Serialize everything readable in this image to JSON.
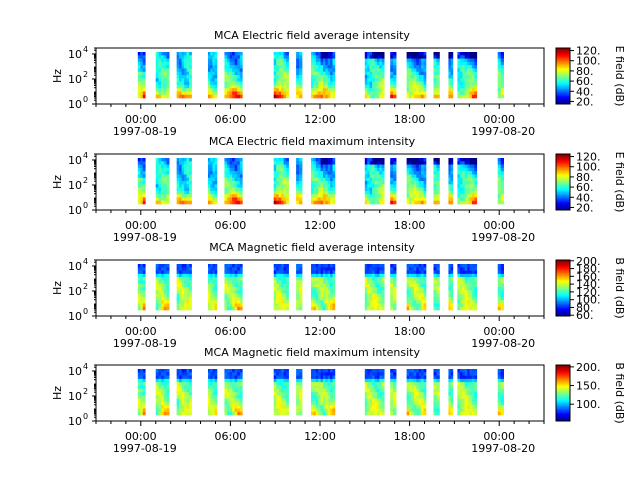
{
  "chart_data": [
    {
      "type": "heatmap",
      "title": "MCA  Electric field average intensity",
      "ylabel": "Hz",
      "yscale": "log",
      "ylim": [
        1,
        30000
      ],
      "yticks": [
        {
          "base": "10",
          "exp": "0"
        },
        {
          "base": "10",
          "exp": "2"
        },
        {
          "base": "10",
          "exp": "4"
        }
      ],
      "xlim_hours": [
        -3,
        27
      ],
      "xticks": [
        {
          "time": "00:00",
          "date": "1997-08-19"
        },
        {
          "time": "06:00",
          "date": ""
        },
        {
          "time": "12:00",
          "date": ""
        },
        {
          "time": "18:00",
          "date": ""
        },
        {
          "time": "00:00",
          "date": "1997-08-20"
        }
      ],
      "colorbar": {
        "label": "E field (dB)",
        "range": [
          15,
          125
        ],
        "ticks": [
          "20.",
          "40.",
          "60.",
          "80.",
          "100.",
          "120."
        ],
        "colormap": "jet"
      },
      "pattern": "electric",
      "data_segments_hours": [
        [
          -0.2,
          0.3
        ],
        [
          1.0,
          1.9
        ],
        [
          2.4,
          3.4
        ],
        [
          4.5,
          5.1
        ],
        [
          5.6,
          6.8
        ],
        [
          8.9,
          9.9
        ],
        [
          10.4,
          10.8
        ],
        [
          11.4,
          13.0
        ],
        [
          15.0,
          16.3
        ],
        [
          16.7,
          17.1
        ],
        [
          17.8,
          19.1
        ],
        [
          19.6,
          20.0
        ],
        [
          20.6,
          20.9
        ],
        [
          21.2,
          22.5
        ],
        [
          23.9,
          24.3
        ]
      ]
    },
    {
      "type": "heatmap",
      "title": "MCA  Electric field maximum intensity",
      "ylabel": "Hz",
      "yscale": "log",
      "ylim": [
        1,
        30000
      ],
      "yticks": [
        {
          "base": "10",
          "exp": "0"
        },
        {
          "base": "10",
          "exp": "2"
        },
        {
          "base": "10",
          "exp": "4"
        }
      ],
      "xlim_hours": [
        -3,
        27
      ],
      "xticks": [
        {
          "time": "00:00",
          "date": "1997-08-19"
        },
        {
          "time": "06:00",
          "date": ""
        },
        {
          "time": "12:00",
          "date": ""
        },
        {
          "time": "18:00",
          "date": ""
        },
        {
          "time": "00:00",
          "date": "1997-08-20"
        }
      ],
      "colorbar": {
        "label": "E field (dB)",
        "range": [
          15,
          125
        ],
        "ticks": [
          "20.",
          "40.",
          "60.",
          "80.",
          "100.",
          "120."
        ],
        "colormap": "jet"
      },
      "pattern": "electric",
      "data_segments_hours": [
        [
          -0.2,
          0.3
        ],
        [
          1.0,
          1.9
        ],
        [
          2.4,
          3.4
        ],
        [
          4.5,
          5.1
        ],
        [
          5.6,
          6.8
        ],
        [
          8.9,
          9.9
        ],
        [
          10.4,
          10.8
        ],
        [
          11.4,
          13.0
        ],
        [
          15.0,
          16.3
        ],
        [
          16.7,
          17.1
        ],
        [
          17.8,
          19.1
        ],
        [
          19.6,
          20.0
        ],
        [
          20.6,
          20.9
        ],
        [
          21.2,
          22.5
        ],
        [
          23.9,
          24.3
        ]
      ]
    },
    {
      "type": "heatmap",
      "title": "MCA  Magnetic field average intensity",
      "ylabel": "Hz",
      "yscale": "log",
      "ylim": [
        1,
        30000
      ],
      "yticks": [
        {
          "base": "10",
          "exp": "0"
        },
        {
          "base": "10",
          "exp": "2"
        },
        {
          "base": "10",
          "exp": "4"
        }
      ],
      "xlim_hours": [
        -3,
        27
      ],
      "xticks": [
        {
          "time": "00:00",
          "date": "1997-08-19"
        },
        {
          "time": "06:00",
          "date": ""
        },
        {
          "time": "12:00",
          "date": ""
        },
        {
          "time": "18:00",
          "date": ""
        },
        {
          "time": "00:00",
          "date": "1997-08-20"
        }
      ],
      "colorbar": {
        "label": "B field (dB)",
        "range": [
          58,
          202
        ],
        "ticks": [
          "60.",
          "80.",
          "100.",
          "120.",
          "140.",
          "160.",
          "180.",
          "200."
        ],
        "colormap": "jet"
      },
      "pattern": "magnetic",
      "data_segments_hours": [
        [
          -0.2,
          0.3
        ],
        [
          1.0,
          1.9
        ],
        [
          2.4,
          3.4
        ],
        [
          4.5,
          5.1
        ],
        [
          5.6,
          6.8
        ],
        [
          8.9,
          9.9
        ],
        [
          10.4,
          10.8
        ],
        [
          11.4,
          13.0
        ],
        [
          15.0,
          16.3
        ],
        [
          16.7,
          17.1
        ],
        [
          17.8,
          19.1
        ],
        [
          19.6,
          20.0
        ],
        [
          20.6,
          20.9
        ],
        [
          21.2,
          22.5
        ],
        [
          23.9,
          24.3
        ]
      ]
    },
    {
      "type": "heatmap",
      "title": "MCA  Magnetic field maximum intensity",
      "ylabel": "Hz",
      "yscale": "log",
      "ylim": [
        1,
        30000
      ],
      "yticks": [
        {
          "base": "10",
          "exp": "0"
        },
        {
          "base": "10",
          "exp": "2"
        },
        {
          "base": "10",
          "exp": "4"
        }
      ],
      "xlim_hours": [
        -3,
        27
      ],
      "xticks": [
        {
          "time": "00:00",
          "date": "1997-08-19"
        },
        {
          "time": "06:00",
          "date": ""
        },
        {
          "time": "12:00",
          "date": ""
        },
        {
          "time": "18:00",
          "date": ""
        },
        {
          "time": "00:00",
          "date": "1997-08-20"
        }
      ],
      "colorbar": {
        "label": "B field (dB)",
        "range": [
          55,
          205
        ],
        "ticks": [
          "100.",
          "150.",
          "200."
        ],
        "colormap": "jet"
      },
      "pattern": "magnetic",
      "data_segments_hours": [
        [
          -0.2,
          0.3
        ],
        [
          1.0,
          1.9
        ],
        [
          2.4,
          3.4
        ],
        [
          4.5,
          5.1
        ],
        [
          5.6,
          6.8
        ],
        [
          8.9,
          9.9
        ],
        [
          10.4,
          10.8
        ],
        [
          11.4,
          13.0
        ],
        [
          15.0,
          16.3
        ],
        [
          16.7,
          17.1
        ],
        [
          17.8,
          19.1
        ],
        [
          19.6,
          20.0
        ],
        [
          20.6,
          20.9
        ],
        [
          21.2,
          22.5
        ],
        [
          23.9,
          24.3
        ]
      ]
    }
  ]
}
